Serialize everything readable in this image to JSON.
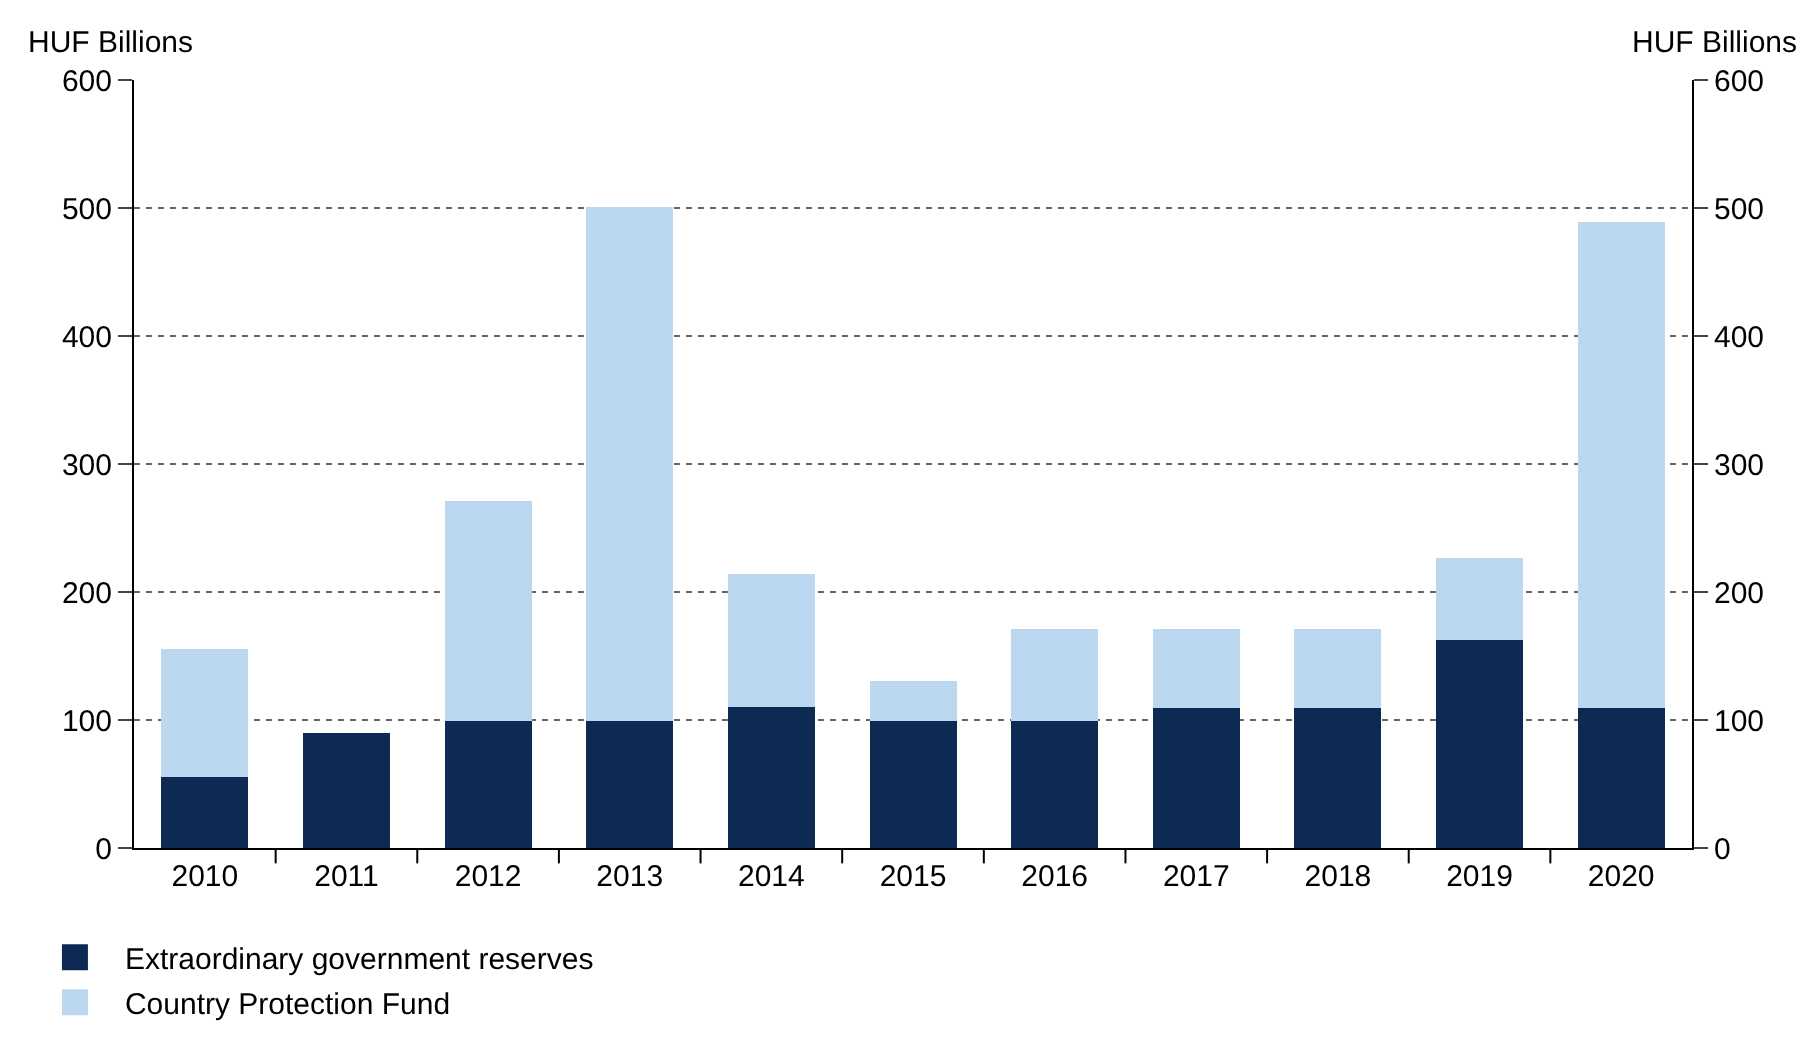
{
  "chart_data": {
    "type": "bar",
    "stacked": true,
    "ylabel": "HUF Billions",
    "y2label": "HUF Billions",
    "categories": [
      "2010",
      "2011",
      "2012",
      "2013",
      "2014",
      "2015",
      "2016",
      "2017",
      "2018",
      "2019",
      "2020"
    ],
    "series": [
      {
        "name": "Extraordinary government reserves",
        "color": "#0c2a52",
        "values": [
          56,
          89,
          100,
          100,
          111,
          100,
          100,
          110,
          110,
          163,
          110
        ]
      },
      {
        "name": "Country Protection Fund",
        "color": "#bcd8f0",
        "values": [
          99,
          null,
          170,
          400,
          102,
          30,
          70,
          60,
          60,
          63,
          378
        ]
      }
    ],
    "ylim": [
      0,
      600
    ],
    "yticks": [
      0,
      100,
      200,
      300,
      400,
      500,
      600
    ],
    "y2lim": [
      0,
      600
    ],
    "y2ticks": [
      0,
      100,
      200,
      300,
      400,
      500,
      600
    ],
    "grid": "y",
    "legend": "bottom left"
  }
}
